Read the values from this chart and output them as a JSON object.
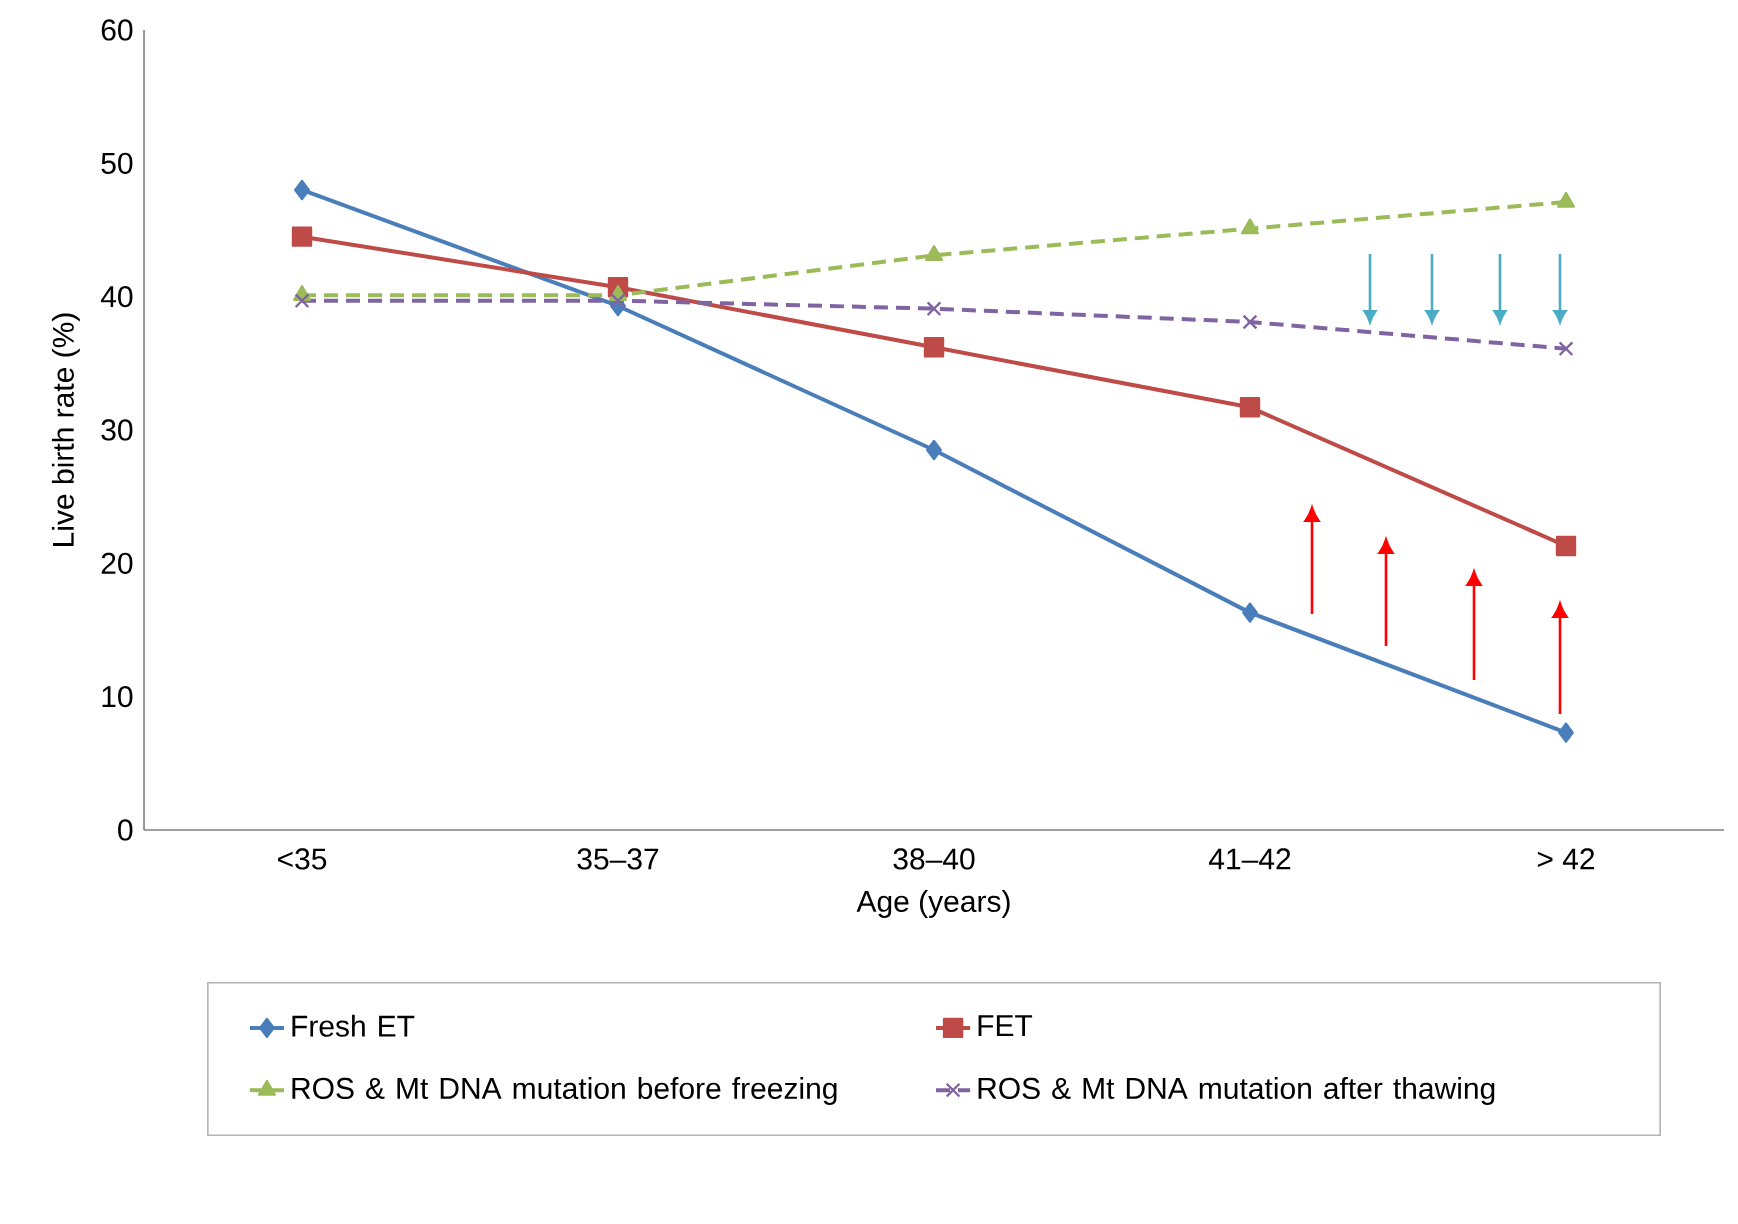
{
  "chart_data": {
    "type": "line",
    "xlabel": "Age (years)",
    "ylabel": "Live birth rate (%)",
    "categories": [
      "<35",
      "35–37",
      "38–40",
      "41–42",
      "> 42"
    ],
    "series": [
      {
        "name": "Fresh ET",
        "color": "#4a7ebb",
        "marker": "diamond",
        "line_style": "solid",
        "values": [
          48,
          39.3,
          28.5,
          16.3,
          7.3
        ]
      },
      {
        "name": "FET",
        "color": "#be4b48",
        "marker": "square",
        "line_style": "solid",
        "values": [
          44.5,
          40.7,
          36.2,
          31.7,
          21.3
        ]
      },
      {
        "name": "ROS & Mt DNA mutation before freezing",
        "color": "#9bbb59",
        "marker": "triangle",
        "line_style": "dashed",
        "values": [
          40.1,
          40.1,
          43.1,
          45.1,
          47.1
        ]
      },
      {
        "name": "ROS & Mt DNA mutation after thawing",
        "color": "#8064a2",
        "marker": "cross",
        "line_style": "dashed",
        "values": [
          39.7,
          39.7,
          39.1,
          38.1,
          36.1
        ]
      }
    ],
    "ylim": [
      0,
      60
    ],
    "yticks": [
      0,
      10,
      20,
      30,
      40,
      50,
      60
    ],
    "grid": false,
    "legend": "bottom"
  }
}
